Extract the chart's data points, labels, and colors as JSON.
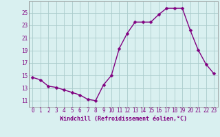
{
  "x": [
    0,
    1,
    2,
    3,
    4,
    5,
    6,
    7,
    8,
    9,
    10,
    11,
    12,
    13,
    14,
    15,
    16,
    17,
    18,
    19,
    20,
    21,
    22,
    23
  ],
  "y": [
    14.7,
    14.3,
    13.3,
    13.1,
    12.7,
    12.3,
    11.9,
    11.2,
    11.0,
    13.5,
    15.0,
    19.3,
    21.7,
    23.5,
    23.5,
    23.5,
    24.7,
    25.7,
    25.7,
    25.7,
    22.2,
    19.1,
    16.8,
    15.3
  ],
  "line_color": "#800080",
  "marker_color": "#800080",
  "bg_color": "#d9f0f0",
  "grid_color": "#aacccc",
  "xlabel": "Windchill (Refroidissement éolien,°C)",
  "ylabel": "",
  "xlim": [
    -0.5,
    23.5
  ],
  "ylim": [
    10.0,
    26.8
  ],
  "yticks": [
    11,
    13,
    15,
    17,
    19,
    21,
    23,
    25
  ],
  "xticks": [
    0,
    1,
    2,
    3,
    4,
    5,
    6,
    7,
    8,
    9,
    10,
    11,
    12,
    13,
    14,
    15,
    16,
    17,
    18,
    19,
    20,
    21,
    22,
    23
  ],
  "font_color": "#800080",
  "line_width": 1.0,
  "marker_size": 2.5
}
